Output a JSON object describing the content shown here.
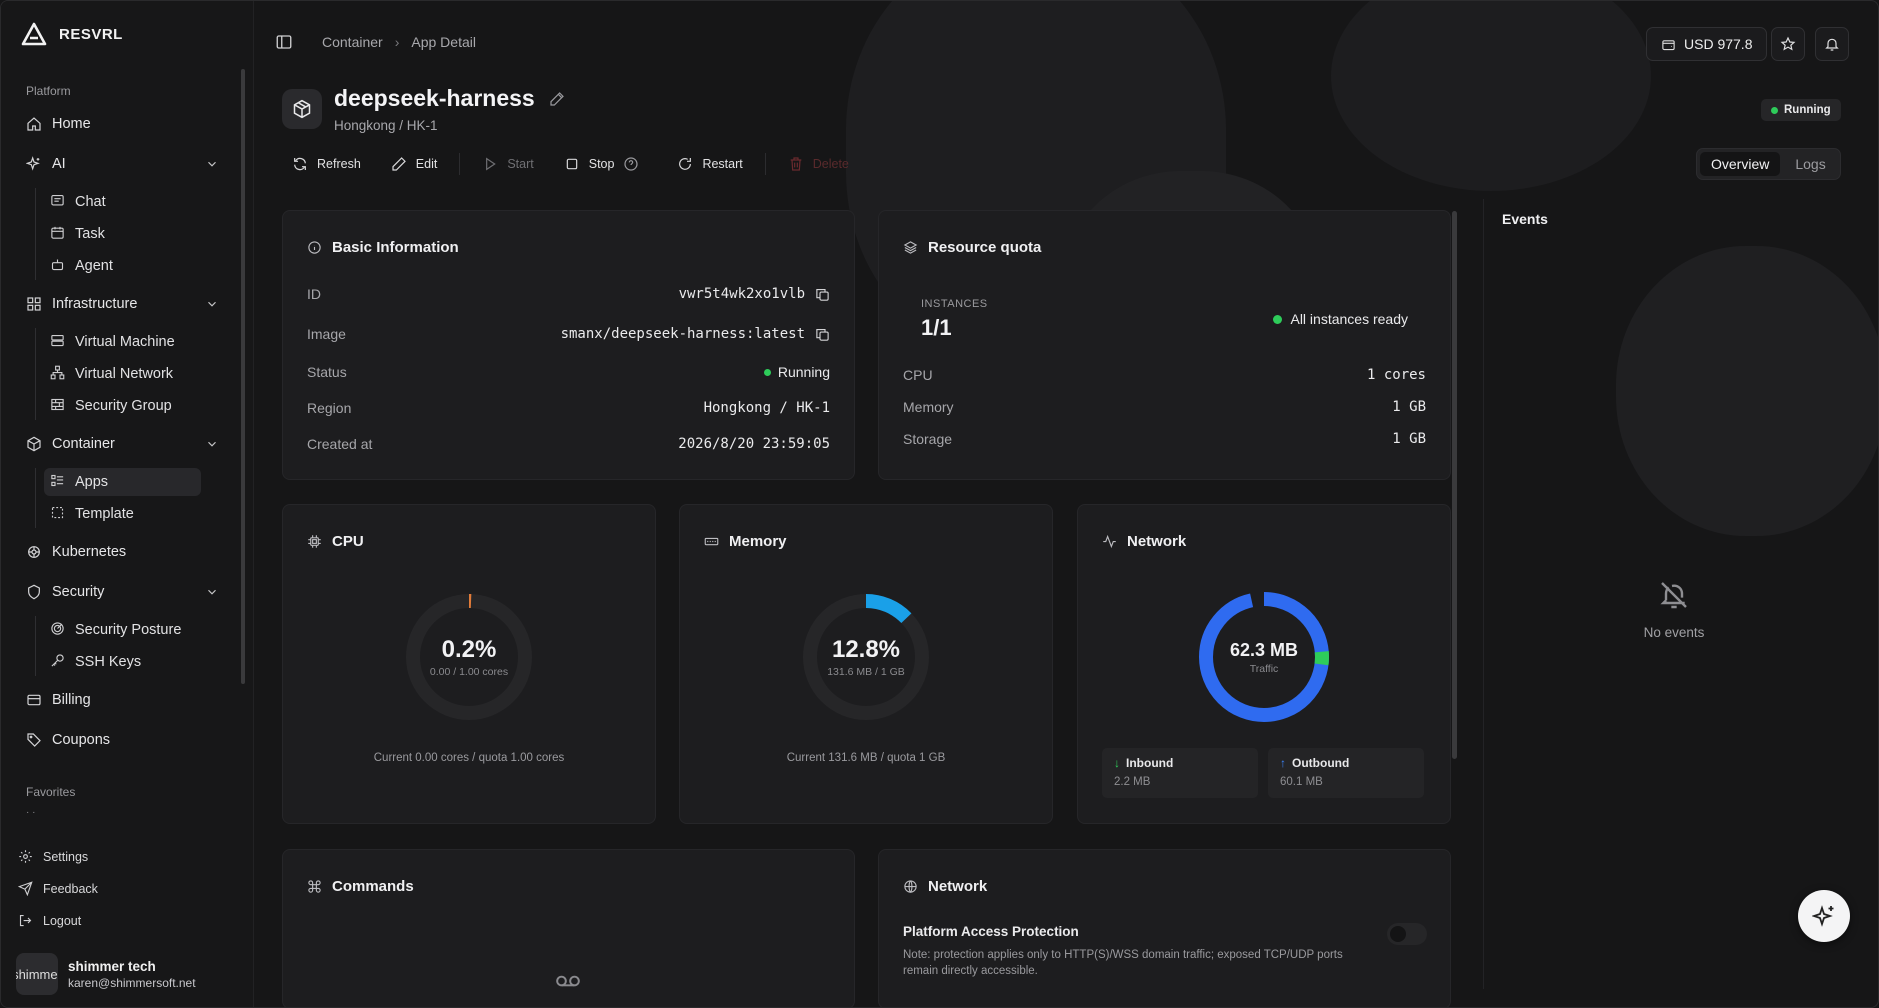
{
  "brand": {
    "name": "RESVRL"
  },
  "sidebar": {
    "platform_label": "Platform",
    "favorites_label": "Favorites",
    "favorites_placeholder": "· ·",
    "items": {
      "home": "Home",
      "ai": "AI",
      "chat": "Chat",
      "task": "Task",
      "agent": "Agent",
      "infrastructure": "Infrastructure",
      "virtual_machine": "Virtual Machine",
      "virtual_network": "Virtual Network",
      "security_group": "Security Group",
      "container": "Container",
      "apps": "Apps",
      "template": "Template",
      "kubernetes": "Kubernetes",
      "security": "Security",
      "security_posture": "Security Posture",
      "ssh_keys": "SSH Keys",
      "billing": "Billing",
      "coupons": "Coupons"
    },
    "footer": {
      "settings": "Settings",
      "feedback": "Feedback",
      "logout": "Logout"
    },
    "user": {
      "avatar_text": "shimmer",
      "name": "shimmer tech",
      "email": "karen@shimmersoft.net"
    }
  },
  "topbar": {
    "breadcrumb": [
      "Container",
      "App Detail"
    ],
    "balance": "USD 977.8"
  },
  "app": {
    "name": "deepseek-harness",
    "region": "Hongkong / HK-1",
    "status": "Running"
  },
  "actions": {
    "refresh": "Refresh",
    "edit": "Edit",
    "start": "Start",
    "stop": "Stop",
    "restart": "Restart",
    "delete": "Delete"
  },
  "tabs": {
    "overview": "Overview",
    "logs": "Logs"
  },
  "basic_info": {
    "title": "Basic Information",
    "rows": [
      {
        "label": "ID",
        "value": "vwr5t4wk2xo1vlb"
      },
      {
        "label": "Image",
        "value": "smanx/deepseek-harness:latest"
      },
      {
        "label": "Status",
        "value": "Running"
      },
      {
        "label": "Region",
        "value": "Hongkong / HK-1"
      },
      {
        "label": "Created at",
        "value": "2026/8/20 23:59:05"
      }
    ]
  },
  "resource_quota": {
    "title": "Resource quota",
    "instances_label": "INSTANCES",
    "instances_value": "1/1",
    "ready_text": "All instances ready",
    "rows": [
      {
        "label": "CPU",
        "value": "1 cores"
      },
      {
        "label": "Memory",
        "value": "1 GB"
      },
      {
        "label": "Storage",
        "value": "1 GB"
      }
    ]
  },
  "cpu": {
    "title": "CPU",
    "percent_label": "0.2%",
    "percent": 0.2,
    "sub": "0.00 / 1.00 cores",
    "caption": "Current 0.00 cores / quota 1.00 cores",
    "color": "#e07b39"
  },
  "memory": {
    "title": "Memory",
    "percent_label": "12.8%",
    "percent": 12.8,
    "sub": "131.6 MB / 1 GB",
    "caption": "Current 131.6 MB / quota 1 GB",
    "color": "#1aa0e8"
  },
  "network_usage": {
    "title": "Network",
    "total": "62.3 MB",
    "total_label": "Traffic",
    "inbound_label": "Inbound",
    "inbound_value": "2.2 MB",
    "inbound_mb": 2.2,
    "outbound_label": "Outbound",
    "outbound_value": "60.1 MB",
    "outbound_mb": 60.1,
    "inbound_color": "#2ecc5a",
    "outbound_color": "#2f6bf0"
  },
  "commands": {
    "title": "Commands"
  },
  "network_access": {
    "title": "Network",
    "protection_label": "Platform Access Protection",
    "protection_note": "Note: protection applies only to HTTP(S)/WSS domain traffic; exposed TCP/UDP ports remain directly accessible."
  },
  "events": {
    "title": "Events",
    "empty_text": "No events"
  },
  "colors": {
    "accent_green": "#2ecc5a",
    "background": "#161617",
    "card": "#1d1d1f"
  }
}
